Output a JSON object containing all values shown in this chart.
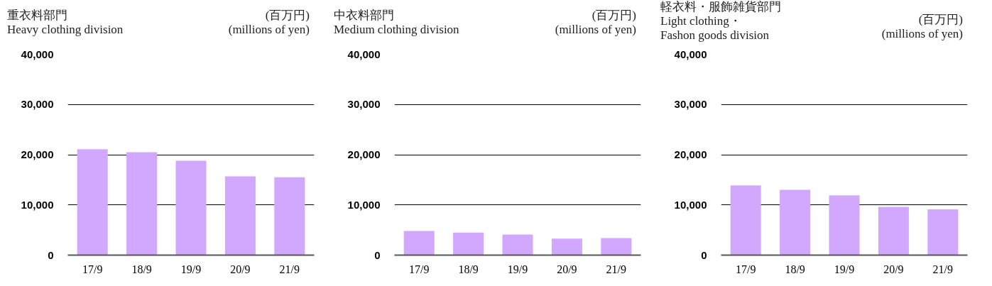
{
  "chart_data": [
    {
      "type": "bar",
      "title": "重衣料部門",
      "subtitle": "Heavy clothing division",
      "annotations": [
        "(百万円)",
        "(millions of yen)"
      ],
      "categories": [
        "17/9",
        "18/9",
        "19/9",
        "20/9",
        "21/9"
      ],
      "values": [
        21100,
        20500,
        18800,
        15700,
        15500
      ],
      "color": "#d2a8ff",
      "ylim": [
        0,
        40000
      ],
      "yticks": [
        {
          "value": 0,
          "label": "0"
        },
        {
          "value": 10000,
          "label": "10,000"
        },
        {
          "value": 20000,
          "label": "20,000"
        },
        {
          "value": 30000,
          "label": "30,000"
        },
        {
          "value": 40000,
          "label": "40,000"
        }
      ],
      "grid": "y",
      "legend": false
    },
    {
      "type": "bar",
      "title": "中衣料部門",
      "subtitle": "Medium clothing division",
      "annotations": [
        "(百万円)",
        "(millions of yen)"
      ],
      "categories": [
        "17/9",
        "18/9",
        "19/9",
        "20/9",
        "21/9"
      ],
      "values": [
        4800,
        4500,
        4100,
        3300,
        3400
      ],
      "color": "#d2a8ff",
      "ylim": [
        0,
        40000
      ],
      "yticks": [
        {
          "value": 0,
          "label": "0"
        },
        {
          "value": 10000,
          "label": "10,000"
        },
        {
          "value": 20000,
          "label": "20,000"
        },
        {
          "value": 30000,
          "label": "30,000"
        },
        {
          "value": 40000,
          "label": "40,000"
        }
      ],
      "grid": "y",
      "legend": false
    },
    {
      "type": "bar",
      "title": "軽衣料・服飾雑貨部門",
      "subtitle": "Light clothing・\nFashon goods division",
      "annotations": [
        "(百万円)",
        "(millions of yen)"
      ],
      "categories": [
        "17/9",
        "18/9",
        "19/9",
        "20/9",
        "21/9"
      ],
      "values": [
        13900,
        13000,
        11900,
        9600,
        9100
      ],
      "color": "#d2a8ff",
      "ylim": [
        0,
        40000
      ],
      "yticks": [
        {
          "value": 0,
          "label": "0"
        },
        {
          "value": 10000,
          "label": "10,000"
        },
        {
          "value": 20000,
          "label": "20,000"
        },
        {
          "value": 30000,
          "label": "30,000"
        },
        {
          "value": 40000,
          "label": "40,000"
        }
      ],
      "grid": "y",
      "legend": false
    }
  ]
}
